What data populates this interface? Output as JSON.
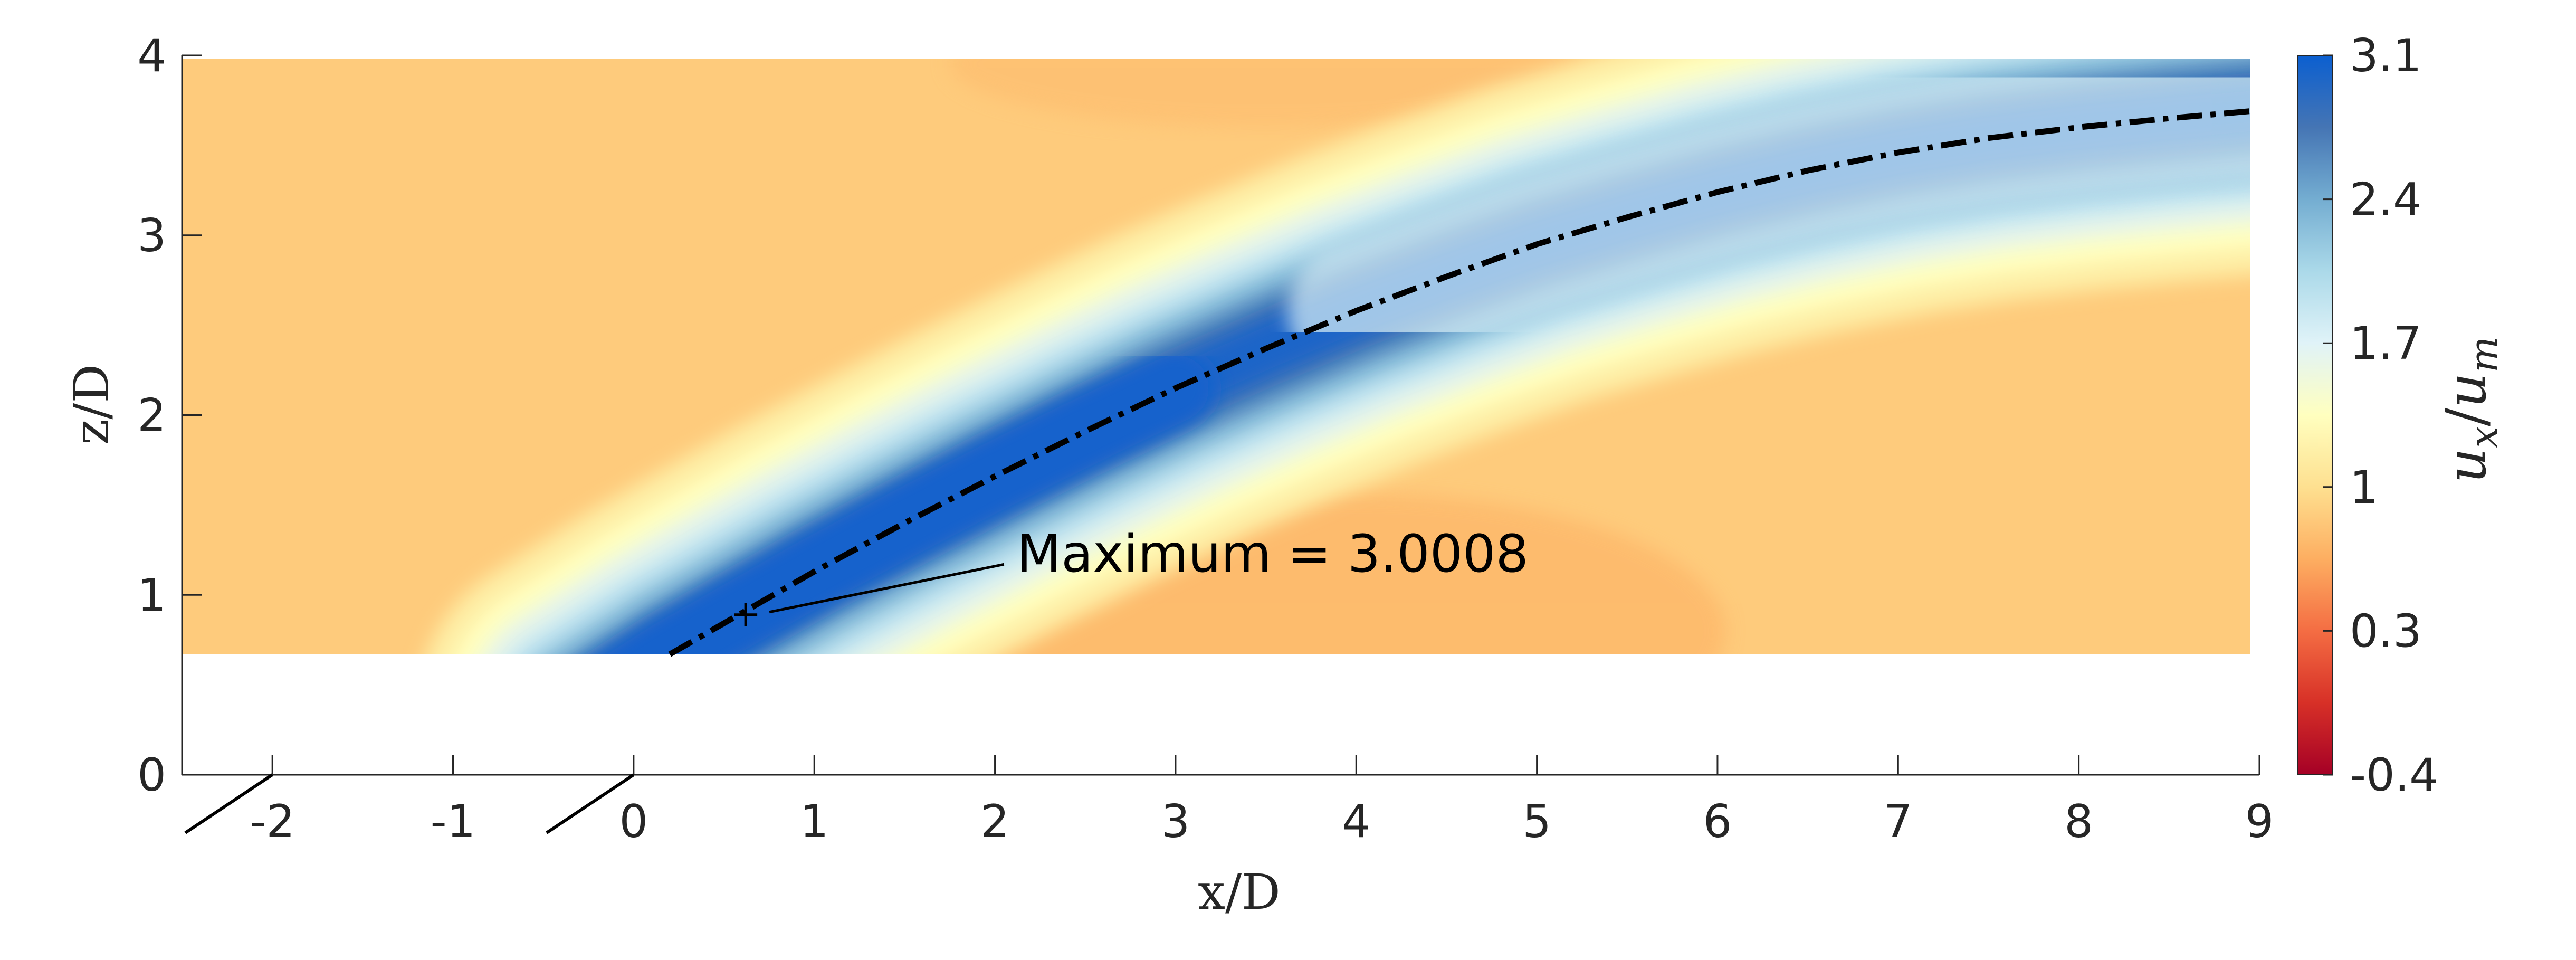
{
  "chart_data": {
    "type": "heatmap",
    "xlabel": "x/D",
    "ylabel": "z/D",
    "xlim": [
      -2.5,
      9
    ],
    "ylim": [
      0,
      4
    ],
    "x_ticks": [
      "-2",
      "-1",
      "0",
      "1",
      "2",
      "3",
      "4",
      "5",
      "6",
      "7",
      "8",
      "9"
    ],
    "y_ticks": [
      "0",
      "1",
      "2",
      "3",
      "4"
    ],
    "field_extent": {
      "x": [
        -2.5,
        8.95
      ],
      "z": [
        0.67,
        3.98
      ]
    },
    "field_description_values": {
      "background_level": 0.85,
      "jet_core_peak": 3.0,
      "jet_width_near": 0.55,
      "jet_width_far": 1.4
    },
    "colorbar": {
      "label": "u_x/u_m",
      "label_main": "u",
      "label_sub_1": "x",
      "label_sep": "/",
      "label_sub_2": "m",
      "range": [
        -0.4,
        3.1
      ],
      "ticks": [
        "3.1",
        "2.4",
        "1.7",
        "1",
        "0.3",
        "-0.4"
      ],
      "tick_values": [
        3.1,
        2.4,
        1.7,
        1.0,
        0.3,
        -0.4
      ],
      "colors": [
        "#a50026",
        "#d73027",
        "#f46d43",
        "#fdae61",
        "#fee090",
        "#ffffbf",
        "#e0f3f8",
        "#abd9e9",
        "#74add1",
        "#4575b4",
        "#0b5fd0"
      ]
    },
    "trajectory": {
      "style": "dash-dot",
      "color": "#000000",
      "points": [
        [
          0.2,
          0.67
        ],
        [
          0.6,
          0.9
        ],
        [
          1.0,
          1.13
        ],
        [
          1.5,
          1.4
        ],
        [
          2.0,
          1.66
        ],
        [
          2.5,
          1.91
        ],
        [
          3.0,
          2.15
        ],
        [
          3.5,
          2.37
        ],
        [
          4.0,
          2.58
        ],
        [
          4.5,
          2.77
        ],
        [
          5.0,
          2.95
        ],
        [
          5.5,
          3.1
        ],
        [
          6.0,
          3.24
        ],
        [
          6.5,
          3.36
        ],
        [
          7.0,
          3.46
        ],
        [
          7.5,
          3.54
        ],
        [
          8.0,
          3.6
        ],
        [
          8.5,
          3.65
        ],
        [
          8.95,
          3.69
        ]
      ]
    },
    "maximum_marker": {
      "x": 0.62,
      "z": 0.89,
      "value": 3.0008
    },
    "annotation": {
      "text": "Maximum = 3.0008"
    },
    "axis_breaks": [
      -2,
      0
    ]
  }
}
